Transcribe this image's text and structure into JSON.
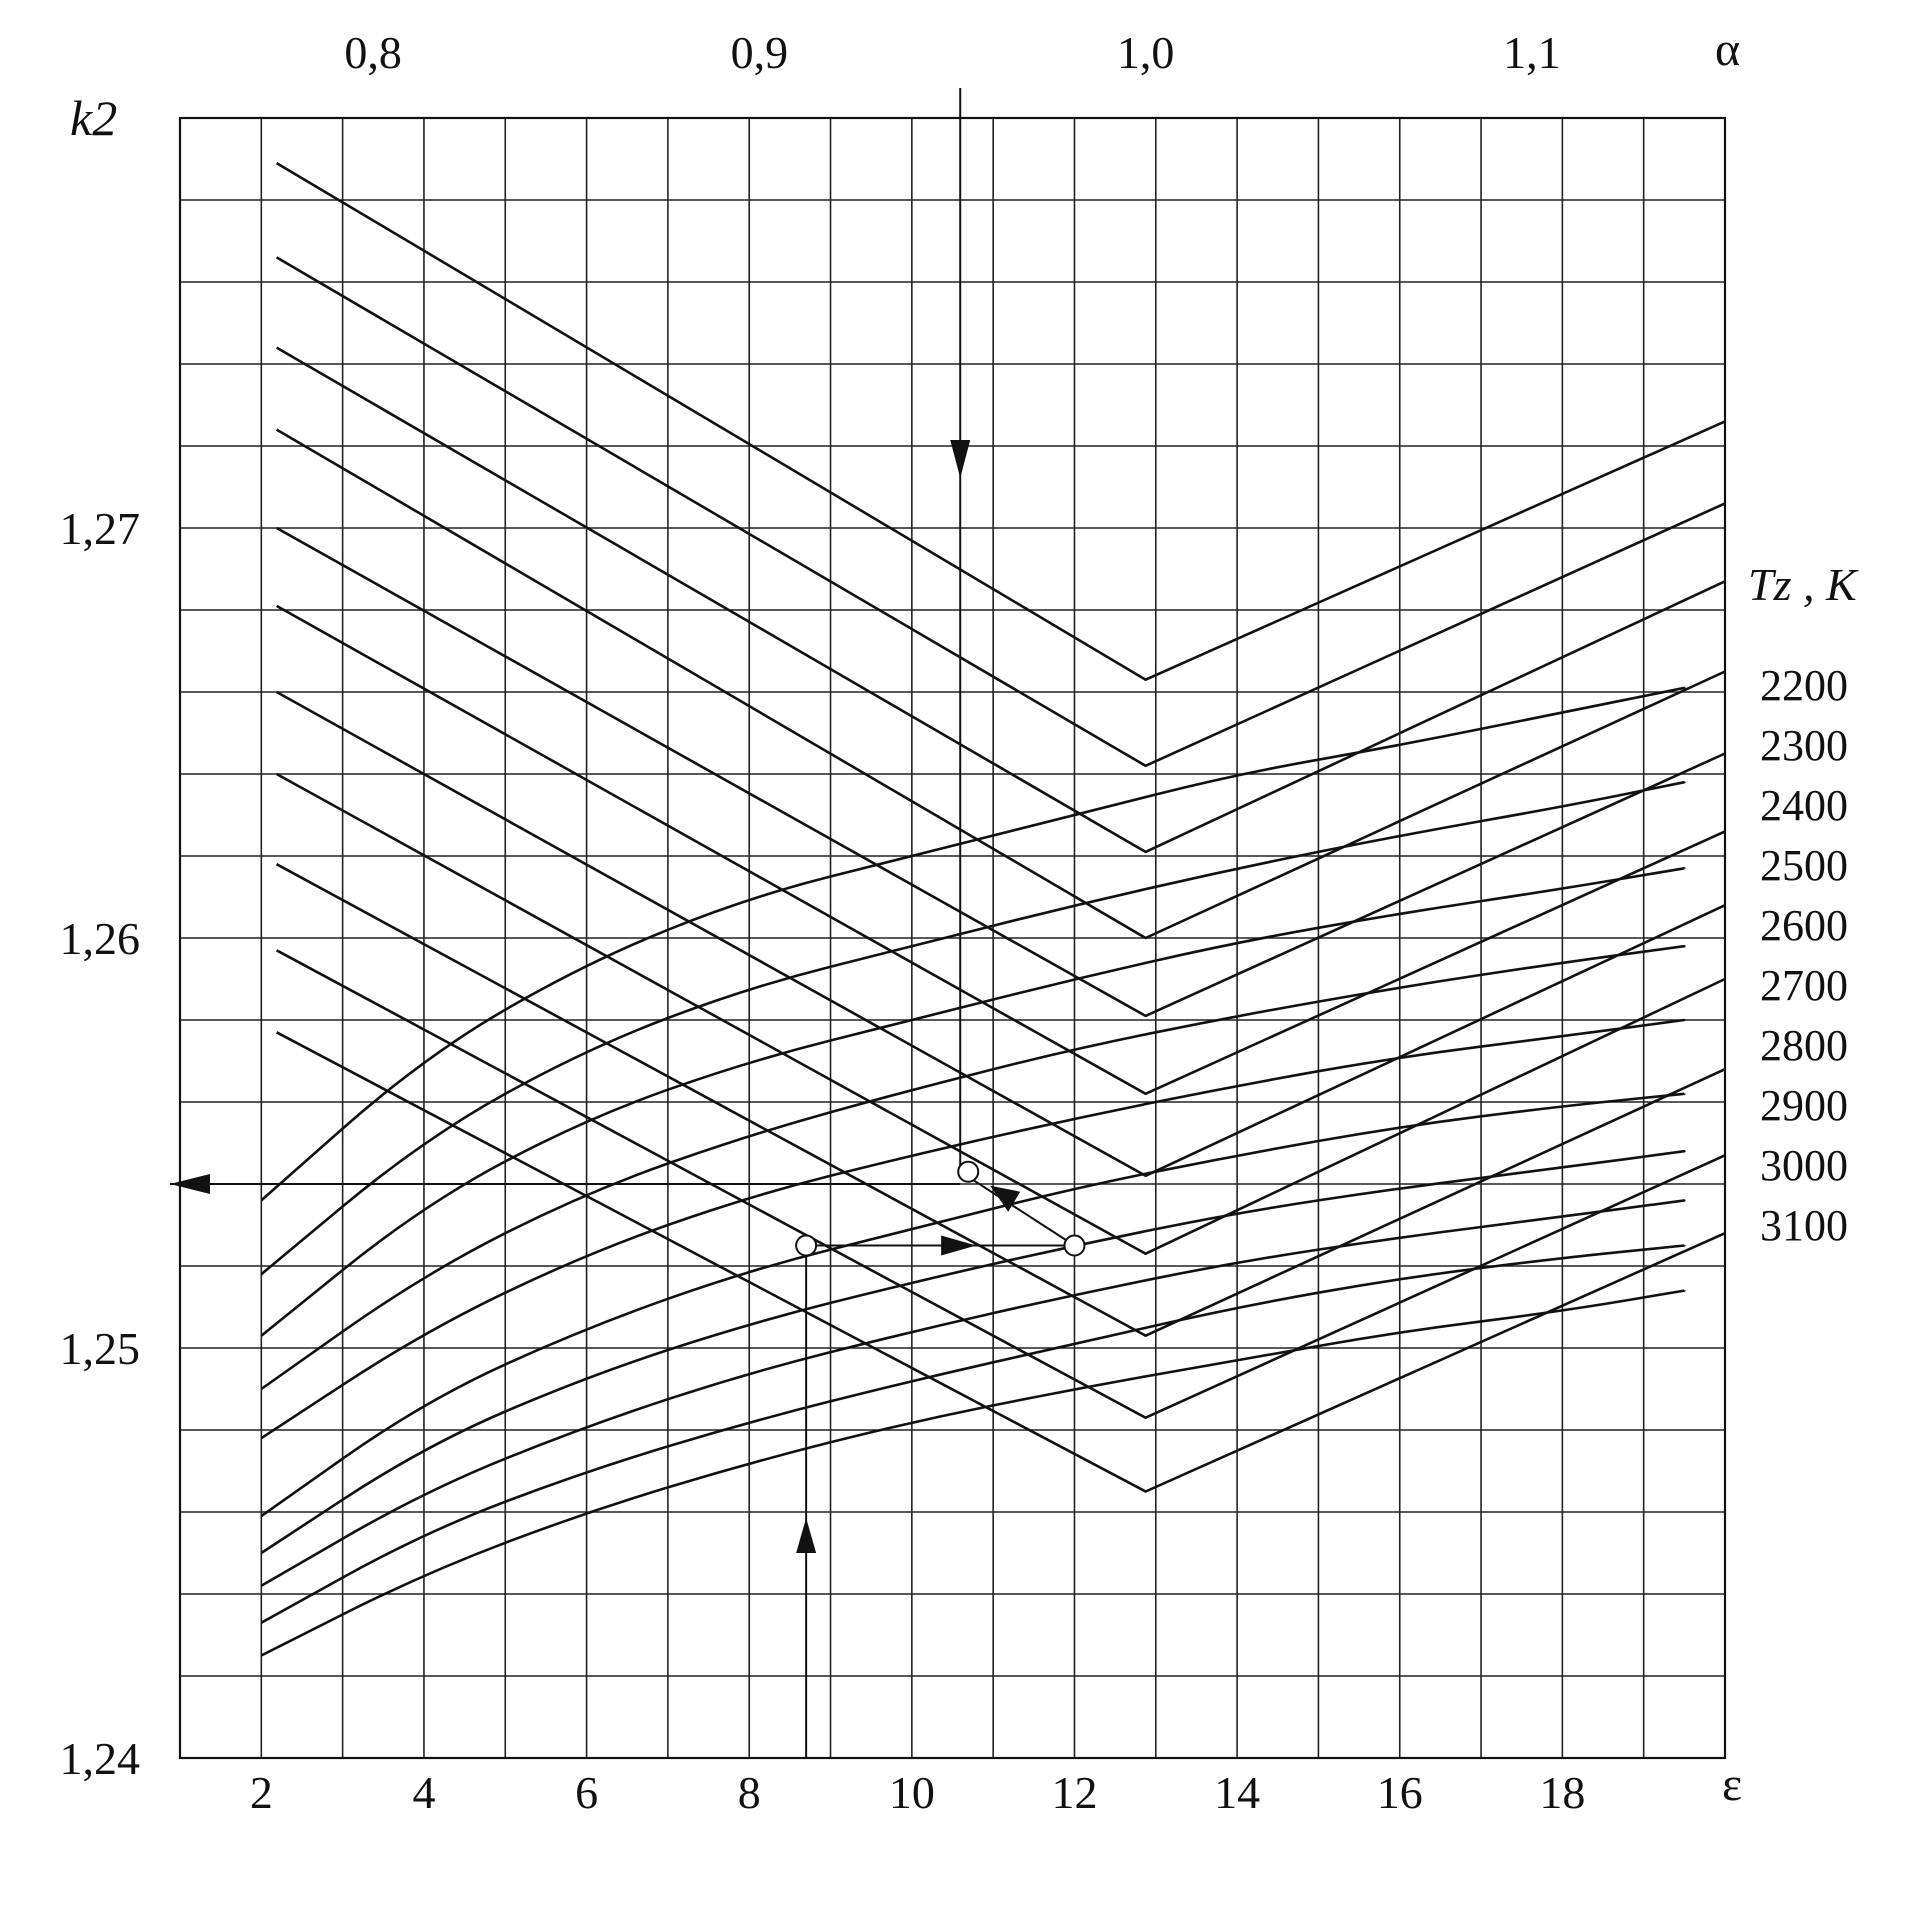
{
  "chart_data": {
    "type": "line",
    "title": "",
    "ylabel": "k2",
    "xlabel_bottom": "ε",
    "xlabel_top": "α",
    "legend_title": "Tz , K",
    "legend_position": "right",
    "grid": true,
    "ylim": [
      1.24,
      1.28
    ],
    "xlim_bottom": [
      1,
      20
    ],
    "xlim_top": [
      0.75,
      1.15
    ],
    "y_ticks": [
      "1,24",
      "1,25",
      "1,26",
      "1,27"
    ],
    "y_tick_values": [
      1.24,
      1.25,
      1.26,
      1.27
    ],
    "x_ticks_bottom": [
      "2",
      "4",
      "6",
      "8",
      "10",
      "12",
      "14",
      "16",
      "18"
    ],
    "x_tick_values_bottom": [
      2,
      4,
      6,
      8,
      10,
      12,
      14,
      16,
      18
    ],
    "x_ticks_top": [
      "0,8",
      "0,9",
      "1,0",
      "1,1"
    ],
    "x_tick_values_top": [
      0.8,
      0.9,
      1.0,
      1.1
    ],
    "alpha_series": [
      {
        "name": "2200",
        "points": [
          [
            0.775,
            1.2789
          ],
          [
            1.0,
            1.2663
          ],
          [
            1.15,
            1.2726
          ]
        ]
      },
      {
        "name": "2300",
        "points": [
          [
            0.775,
            1.2766
          ],
          [
            1.0,
            1.2642
          ],
          [
            1.15,
            1.2706
          ]
        ]
      },
      {
        "name": "2400",
        "points": [
          [
            0.775,
            1.2744
          ],
          [
            1.0,
            1.2621
          ],
          [
            1.15,
            1.2687
          ]
        ]
      },
      {
        "name": "2500",
        "points": [
          [
            0.775,
            1.2724
          ],
          [
            1.0,
            1.26
          ],
          [
            1.15,
            1.2665
          ]
        ]
      },
      {
        "name": "2600",
        "points": [
          [
            0.775,
            1.27
          ],
          [
            1.0,
            1.2581
          ],
          [
            1.15,
            1.2645
          ]
        ]
      },
      {
        "name": "2700",
        "points": [
          [
            0.775,
            1.2681
          ],
          [
            1.0,
            1.2562
          ],
          [
            1.15,
            1.2626
          ]
        ]
      },
      {
        "name": "2800",
        "points": [
          [
            0.775,
            1.266
          ],
          [
            1.0,
            1.2542
          ],
          [
            1.15,
            1.2608
          ]
        ]
      },
      {
        "name": "2900",
        "points": [
          [
            0.775,
            1.264
          ],
          [
            1.0,
            1.2523
          ],
          [
            1.15,
            1.259
          ]
        ]
      },
      {
        "name": "3000",
        "points": [
          [
            0.775,
            1.2618
          ],
          [
            1.0,
            1.2503
          ],
          [
            1.15,
            1.2568
          ]
        ]
      },
      {
        "name": "3100",
        "points": [
          [
            0.775,
            1.2597
          ],
          [
            1.0,
            1.2483
          ],
          [
            1.15,
            1.2547
          ]
        ]
      },
      {
        "name": "",
        "points": [
          [
            0.775,
            1.2577
          ],
          [
            1.0,
            1.2465
          ],
          [
            1.15,
            1.2528
          ]
        ]
      }
    ],
    "epsilon_series": [
      {
        "name": "2200",
        "points": [
          [
            2,
            1.2536
          ],
          [
            4,
            1.2571
          ],
          [
            6,
            1.2594
          ],
          [
            8,
            1.261
          ],
          [
            10,
            1.262
          ],
          [
            12,
            1.263
          ],
          [
            14,
            1.264
          ],
          [
            16,
            1.2647
          ],
          [
            18,
            1.2655
          ],
          [
            19.5,
            1.2661
          ]
        ]
      },
      {
        "name": "2300",
        "points": [
          [
            2,
            1.2518
          ],
          [
            4,
            1.2551
          ],
          [
            6,
            1.2573
          ],
          [
            8,
            1.2588
          ],
          [
            10,
            1.2598
          ],
          [
            12,
            1.2608
          ],
          [
            14,
            1.2617
          ],
          [
            16,
            1.2625
          ],
          [
            18,
            1.2632
          ],
          [
            19.5,
            1.2638
          ]
        ]
      },
      {
        "name": "2400",
        "points": [
          [
            2,
            1.2503
          ],
          [
            4,
            1.2535
          ],
          [
            6,
            1.2556
          ],
          [
            8,
            1.257
          ],
          [
            10,
            1.258
          ],
          [
            12,
            1.259
          ],
          [
            14,
            1.2599
          ],
          [
            16,
            1.2606
          ],
          [
            18,
            1.2612
          ],
          [
            19.5,
            1.2617
          ]
        ]
      },
      {
        "name": "2500",
        "points": [
          [
            2,
            1.249
          ],
          [
            4,
            1.2518
          ],
          [
            6,
            1.2538
          ],
          [
            8,
            1.2552
          ],
          [
            10,
            1.2563
          ],
          [
            12,
            1.2573
          ],
          [
            14,
            1.2581
          ],
          [
            16,
            1.2588
          ],
          [
            18,
            1.2594
          ],
          [
            19.5,
            1.2598
          ]
        ]
      },
      {
        "name": "2600",
        "points": [
          [
            2,
            1.2478
          ],
          [
            4,
            1.2504
          ],
          [
            6,
            1.2523
          ],
          [
            8,
            1.2537
          ],
          [
            10,
            1.2547
          ],
          [
            12,
            1.2556
          ],
          [
            14,
            1.2564
          ],
          [
            16,
            1.2571
          ],
          [
            18,
            1.2576
          ],
          [
            19.5,
            1.258
          ]
        ]
      },
      {
        "name": "2700",
        "points": [
          [
            2,
            1.2459
          ],
          [
            4,
            1.2487
          ],
          [
            6,
            1.2505
          ],
          [
            8,
            1.2519
          ],
          [
            10,
            1.2529
          ],
          [
            12,
            1.2539
          ],
          [
            14,
            1.2547
          ],
          [
            16,
            1.2554
          ],
          [
            18,
            1.2559
          ],
          [
            19.5,
            1.2562
          ]
        ]
      },
      {
        "name": "2800",
        "points": [
          [
            2,
            1.245
          ],
          [
            4,
            1.2476
          ],
          [
            6,
            1.2493
          ],
          [
            8,
            1.2506
          ],
          [
            10,
            1.2516
          ],
          [
            12,
            1.2525
          ],
          [
            14,
            1.2533
          ],
          [
            16,
            1.2539
          ],
          [
            18,
            1.2544
          ],
          [
            19.5,
            1.2548
          ]
        ]
      },
      {
        "name": "2900",
        "points": [
          [
            2,
            1.2442
          ],
          [
            4,
            1.2465
          ],
          [
            6,
            1.2481
          ],
          [
            8,
            1.2494
          ],
          [
            10,
            1.2504
          ],
          [
            12,
            1.2513
          ],
          [
            14,
            1.2521
          ],
          [
            16,
            1.2527
          ],
          [
            18,
            1.2532
          ],
          [
            19.5,
            1.2536
          ]
        ]
      },
      {
        "name": "3000",
        "points": [
          [
            2,
            1.2433
          ],
          [
            4,
            1.2455
          ],
          [
            6,
            1.247
          ],
          [
            8,
            1.2482
          ],
          [
            10,
            1.2492
          ],
          [
            12,
            1.2501
          ],
          [
            14,
            1.251
          ],
          [
            16,
            1.2517
          ],
          [
            18,
            1.2522
          ],
          [
            19.5,
            1.2525
          ]
        ]
      },
      {
        "name": "3100",
        "points": [
          [
            2,
            1.2425
          ],
          [
            4,
            1.2445
          ],
          [
            6,
            1.246
          ],
          [
            8,
            1.2472
          ],
          [
            10,
            1.2482
          ],
          [
            12,
            1.249
          ],
          [
            14,
            1.2497
          ],
          [
            16,
            1.2504
          ],
          [
            18,
            1.2509
          ],
          [
            19.5,
            1.2514
          ]
        ]
      }
    ],
    "example": {
      "epsilon_start": 8.7,
      "k2_point": 1.2525,
      "alpha_start": 0.952,
      "alpha_point": 1.2543,
      "result_k2": 1.254
    }
  }
}
